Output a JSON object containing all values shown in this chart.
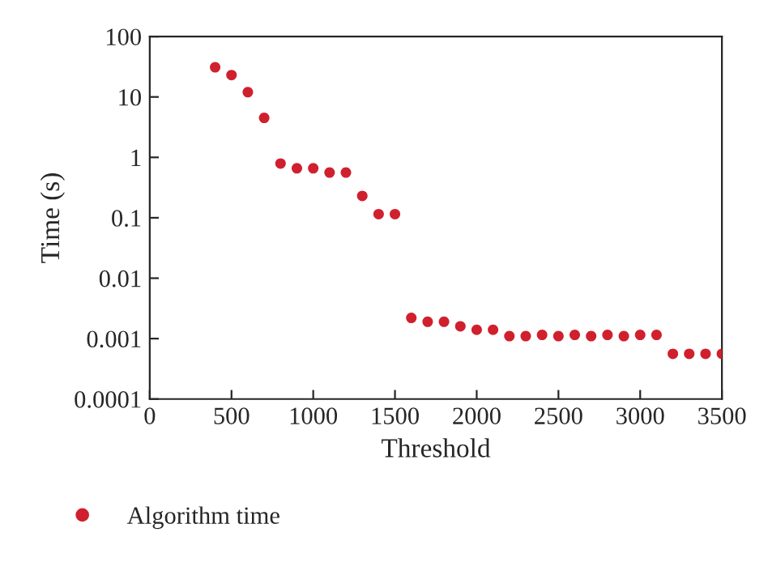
{
  "chart_data": {
    "type": "scatter",
    "xlabel": "Threshold",
    "ylabel": "Time (s)",
    "log": "y",
    "grid": false,
    "legend": "bottom left",
    "marker": "circle",
    "xlim": [
      0,
      3500
    ],
    "xticks": [
      0,
      500,
      1000,
      1500,
      2000,
      2500,
      3000,
      3500
    ],
    "ylim": [
      0.0001,
      100
    ],
    "yticks": [
      {
        "value": 0.0001,
        "label": "0.0001"
      },
      {
        "value": 0.001,
        "label": "0.001"
      },
      {
        "value": 0.01,
        "label": "0.01"
      },
      {
        "value": 0.1,
        "label": "0.1"
      },
      {
        "value": 1,
        "label": "1"
      },
      {
        "value": 10,
        "label": "10"
      },
      {
        "value": 100,
        "label": "100"
      }
    ],
    "series": [
      {
        "name": "Algorithm time",
        "color": "#d0202e",
        "x": [
          400,
          500,
          600,
          700,
          800,
          900,
          1000,
          1100,
          1200,
          1300,
          1400,
          1500,
          1600,
          1700,
          1800,
          1900,
          2000,
          2100,
          2200,
          2300,
          2400,
          2500,
          2600,
          2700,
          2800,
          2900,
          3000,
          3100,
          3200,
          3300,
          3400,
          3500
        ],
        "values": [
          31,
          23,
          12,
          4.5,
          0.79,
          0.66,
          0.66,
          0.56,
          0.56,
          0.23,
          0.115,
          0.115,
          0.0022,
          0.0019,
          0.0019,
          0.0016,
          0.0014,
          0.0014,
          0.0011,
          0.0011,
          0.00115,
          0.0011,
          0.00115,
          0.0011,
          0.00115,
          0.0011,
          0.00115,
          0.00115,
          0.00056,
          0.00056,
          0.00056,
          0.00056
        ]
      }
    ]
  }
}
